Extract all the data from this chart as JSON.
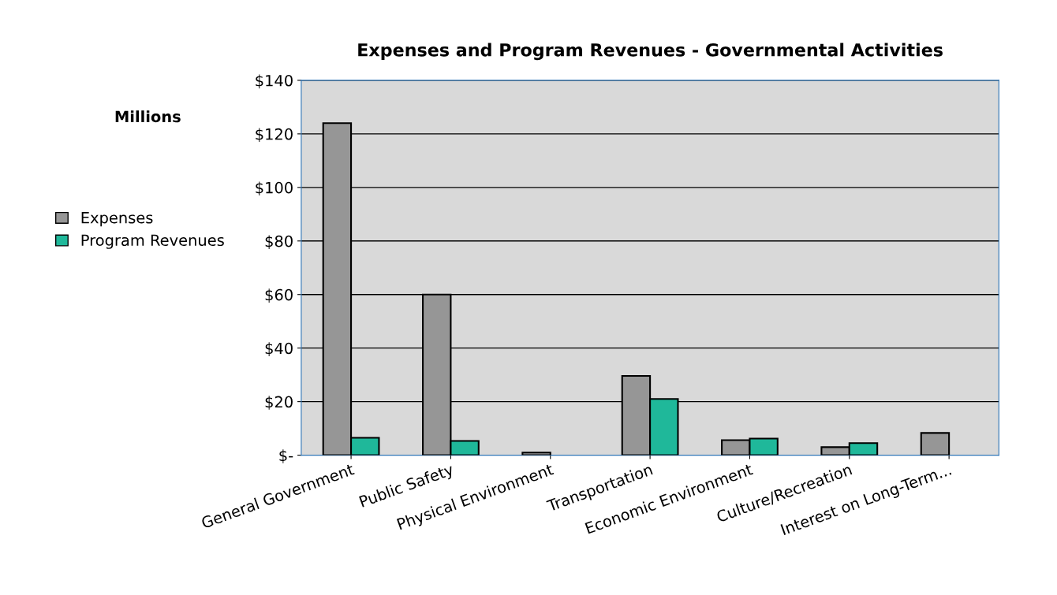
{
  "chart_data": {
    "type": "bar",
    "title": "Expenses and Program Revenues - Governmental Activities",
    "ylabel": "Millions",
    "categories": [
      "General Government",
      "Public Safety",
      "Physical Environment",
      "Transportation",
      "Economic Environment",
      "Culture/Recreation",
      "Interest on Long-Term..."
    ],
    "series": [
      {
        "name": "Expenses",
        "color": "#969696",
        "values": [
          124,
          60,
          1,
          29.6,
          5.6,
          3,
          8.3
        ]
      },
      {
        "name": "Program Revenues",
        "color": "#1fb89a",
        "values": [
          6.5,
          5.3,
          null,
          21,
          6.2,
          4.5,
          null
        ]
      }
    ],
    "ylim": [
      0,
      140
    ],
    "yticks": [
      {
        "value": 0,
        "label": "$-"
      },
      {
        "value": 20,
        "label": "$20"
      },
      {
        "value": 40,
        "label": "$40"
      },
      {
        "value": 60,
        "label": "$60"
      },
      {
        "value": 80,
        "label": "$80"
      },
      {
        "value": 100,
        "label": "$100"
      },
      {
        "value": 120,
        "label": "$120"
      },
      {
        "value": 140,
        "label": "$140"
      }
    ],
    "grid": "y",
    "legend": "left"
  }
}
